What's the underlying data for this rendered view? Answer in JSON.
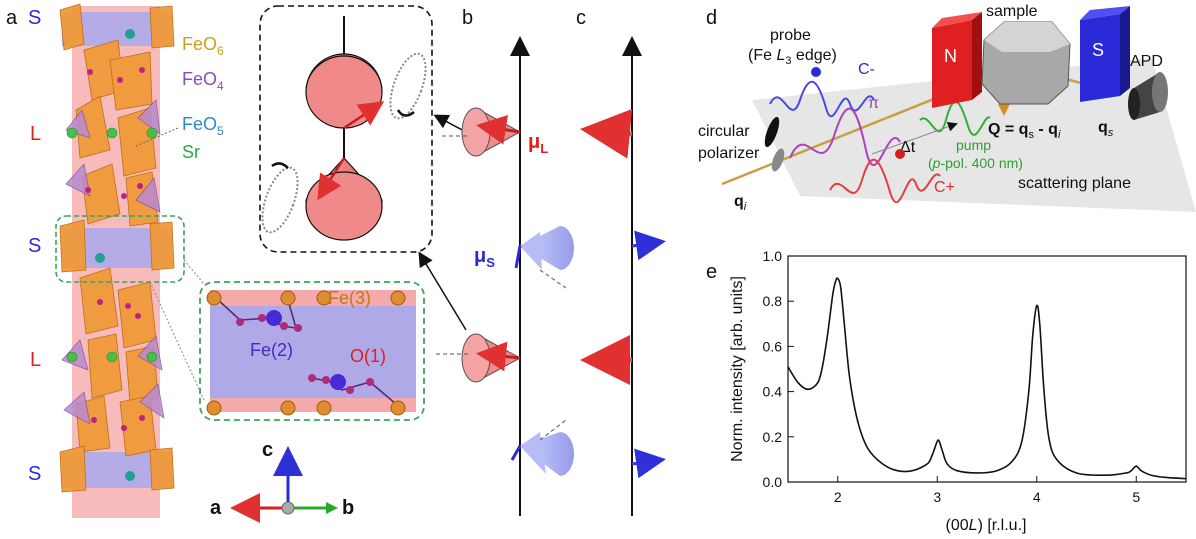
{
  "panels": {
    "a": "a",
    "b": "b",
    "c": "c",
    "d": "d",
    "e": "e"
  },
  "panel_a": {
    "layers": [
      {
        "label": "S",
        "color": "#2a2ad8"
      },
      {
        "label": "L",
        "color": "#e01e1e"
      },
      {
        "label": "S",
        "color": "#2a2ad8"
      },
      {
        "label": "L",
        "color": "#e01e1e"
      },
      {
        "label": "S",
        "color": "#2a2ad8"
      }
    ],
    "legend": [
      {
        "main": "FeO",
        "sub": "6",
        "color": "#c9a020"
      },
      {
        "main": "FeO",
        "sub": "4",
        "color": "#8a4fb8"
      },
      {
        "main": "FeO",
        "sub": "5",
        "color": "#2a8bc8"
      },
      {
        "main": "Sr",
        "sub": "",
        "color": "#2aa84a"
      }
    ],
    "atoms": {
      "fe3": "Fe(3)",
      "fe2": "Fe(2)",
      "o1": "O(1)"
    },
    "axes": {
      "c": "c",
      "a": "a",
      "b": "b"
    }
  },
  "panel_b": {
    "mu_L": {
      "main": "μ",
      "sub": "L",
      "color": "#e01e1e"
    },
    "mu_S": {
      "main": "μ",
      "sub": "S",
      "color": "#2a2ad8"
    }
  },
  "panel_d": {
    "probe_line1": "probe",
    "probe_line2_pre": "(Fe ",
    "probe_line2_it": "L",
    "probe_line2_sub": "3",
    "probe_line2_post": " edge)",
    "c_minus": "C-",
    "c_plus": "C+",
    "pi": "π",
    "delta_t": "Δt",
    "pump_line1": "pump",
    "pump_line2_pre": "(",
    "pump_line2_it": "p",
    "pump_line2_post": "-pol. 400 nm)",
    "polarizer_line1": "circular",
    "polarizer_line2": "polarizer",
    "sample": "sample",
    "magnet_n": "N",
    "magnet_s": "S",
    "apd": "APD",
    "qs": "q",
    "qs_sub": "s",
    "qi": "q",
    "qi_sub": "i",
    "Q_formula_main": "Q = q",
    "Q_formula_sub1": "s",
    "Q_formula_mid": " - q",
    "Q_formula_sub2": "i",
    "scattering_plane": "scattering plane",
    "colors": {
      "probe": "#2a2ad8",
      "pump": "#30b030",
      "pi": "#a040c0",
      "cplus": "#e03030"
    }
  },
  "chart_data": {
    "type": "line",
    "title": "",
    "xlabel_pre": "(00",
    "xlabel_it": "L",
    "xlabel_post": ") [r.l.u.]",
    "ylabel": "Norm. intensity [arb. units]",
    "xlim": [
      1.5,
      5.5
    ],
    "ylim": [
      0.0,
      1.0
    ],
    "xticks": [
      2,
      3,
      4,
      5
    ],
    "yticks": [
      0.0,
      0.2,
      0.4,
      0.6,
      0.8,
      1.0
    ],
    "grid": false,
    "series": [
      {
        "x": [
          1.5,
          1.6,
          1.7,
          1.8,
          1.85,
          1.9,
          1.95,
          1.98,
          2.0,
          2.03,
          2.07,
          2.12,
          2.2,
          2.3,
          2.45,
          2.6,
          2.75,
          2.9,
          2.95,
          3.0,
          3.02,
          3.05,
          3.1,
          3.2,
          3.4,
          3.6,
          3.75,
          3.85,
          3.92,
          3.96,
          4.0,
          4.03,
          4.07,
          4.12,
          4.2,
          4.4,
          4.7,
          4.9,
          4.95,
          5.0,
          5.05,
          5.15,
          5.3,
          5.5
        ],
        "y": [
          0.51,
          0.44,
          0.41,
          0.44,
          0.52,
          0.66,
          0.83,
          0.89,
          0.9,
          0.86,
          0.68,
          0.46,
          0.27,
          0.15,
          0.08,
          0.05,
          0.05,
          0.08,
          0.12,
          0.18,
          0.18,
          0.14,
          0.08,
          0.05,
          0.04,
          0.05,
          0.09,
          0.18,
          0.4,
          0.65,
          0.78,
          0.7,
          0.42,
          0.2,
          0.1,
          0.04,
          0.03,
          0.04,
          0.05,
          0.07,
          0.05,
          0.03,
          0.02,
          0.015
        ]
      }
    ]
  }
}
